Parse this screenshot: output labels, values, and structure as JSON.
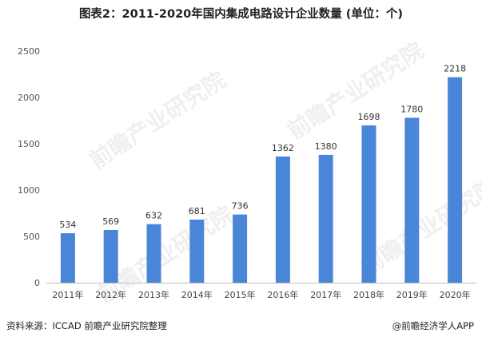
{
  "title": "图表2：2011-2020年国内集成电路设计企业数量 (单位：个)",
  "chart_data": {
    "type": "bar",
    "categories": [
      "2011年",
      "2012年",
      "2013年",
      "2014年",
      "2015年",
      "2016年",
      "2017年",
      "2018年",
      "2019年",
      "2020年"
    ],
    "values": [
      534,
      569,
      632,
      681,
      736,
      1362,
      1380,
      1698,
      1780,
      2218
    ],
    "ylim": [
      0,
      2500
    ],
    "yticks": [
      0,
      500,
      1000,
      1500,
      2000,
      2500
    ],
    "grid": false,
    "legend": "none",
    "bar_color": "#4a86d8",
    "xlabel": "",
    "ylabel": ""
  },
  "watermark": "前瞻产业研究院",
  "footer": {
    "source": "资料来源：ICCAD 前瞻产业研究院整理",
    "brand": "@前瞻经济学人APP"
  },
  "colors": {
    "bar": "#4a86d8",
    "axis": "#bfbfbf",
    "text": "#333333"
  }
}
